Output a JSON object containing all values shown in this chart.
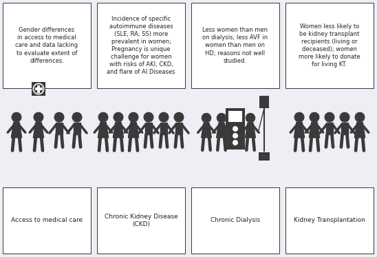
{
  "background_color": "#eeeef5",
  "box_color": "#ffffff",
  "box_edge_color": "#333333",
  "text_color": "#222222",
  "figure_color": "#3a3a3a",
  "top_texts": [
    "Gender differences\nin access to medical\ncare and data lacking\nto evaluate extent of\ndifferences.",
    "Incidence of specific\nautoimmune diseases\n(SLE, RA, SS) more\nprevalent in women;\nPregnancy is unique\nchallenge for women\nwith risks of AKI, CKD,\nand flare of AI Diseases",
    "Less women than men\non dialysis; less AVF in\nwomen than men on\nHD; reasons not well\nstudied.",
    "Women less likely to\nbe kidney transplant\nrecipients (living or\ndeceased); women\nmore likely to donate\nfor living KT."
  ],
  "bottom_texts": [
    "Access to medical care",
    "Chronic Kidney Disease\n(CKD)",
    "Chronic Dialysis",
    "Kidney Transplantation"
  ]
}
